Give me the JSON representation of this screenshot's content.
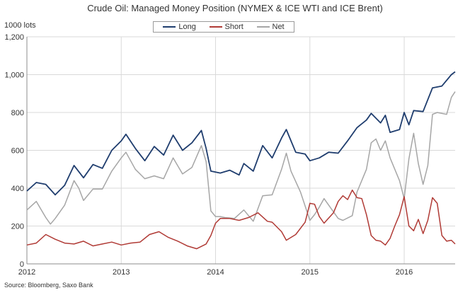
{
  "chart_data": {
    "type": "line",
    "title": "Crude Oil: Managed Money Position (NYMEX & ICE WTI and ICE Brent)",
    "ylabel": "1000 lots",
    "source": "Source: Bloomberg, Saxo Bank",
    "ylim": [
      0,
      1200
    ],
    "xlim": [
      2012,
      2016.54
    ],
    "yticks": [
      0,
      200,
      400,
      600,
      800,
      1000,
      1200
    ],
    "yticklabels": [
      "0",
      "200",
      "400",
      "600",
      "800",
      "1,000",
      "1,200"
    ],
    "xticks": [
      2012,
      2013,
      2014,
      2015,
      2016
    ],
    "xticklabels": [
      "2012",
      "2013",
      "2014",
      "2015",
      "2016"
    ],
    "grid": true,
    "legend_position": "top-center",
    "series": [
      {
        "name": "Long",
        "color": "#1f3d6e",
        "points": [
          [
            2012.0,
            385
          ],
          [
            2012.1,
            430
          ],
          [
            2012.2,
            420
          ],
          [
            2012.3,
            365
          ],
          [
            2012.4,
            415
          ],
          [
            2012.5,
            520
          ],
          [
            2012.6,
            455
          ],
          [
            2012.7,
            525
          ],
          [
            2012.8,
            505
          ],
          [
            2012.9,
            600
          ],
          [
            2013.0,
            650
          ],
          [
            2013.05,
            685
          ],
          [
            2013.15,
            610
          ],
          [
            2013.25,
            545
          ],
          [
            2013.35,
            620
          ],
          [
            2013.45,
            575
          ],
          [
            2013.55,
            680
          ],
          [
            2013.65,
            600
          ],
          [
            2013.75,
            640
          ],
          [
            2013.85,
            705
          ],
          [
            2013.9,
            610
          ],
          [
            2013.95,
            490
          ],
          [
            2014.05,
            480
          ],
          [
            2014.15,
            495
          ],
          [
            2014.25,
            470
          ],
          [
            2014.3,
            530
          ],
          [
            2014.4,
            490
          ],
          [
            2014.5,
            625
          ],
          [
            2014.6,
            560
          ],
          [
            2014.7,
            665
          ],
          [
            2014.75,
            710
          ],
          [
            2014.8,
            650
          ],
          [
            2014.85,
            590
          ],
          [
            2014.95,
            580
          ],
          [
            2015.0,
            545
          ],
          [
            2015.1,
            560
          ],
          [
            2015.2,
            590
          ],
          [
            2015.3,
            585
          ],
          [
            2015.4,
            650
          ],
          [
            2015.5,
            720
          ],
          [
            2015.6,
            760
          ],
          [
            2015.65,
            795
          ],
          [
            2015.75,
            745
          ],
          [
            2015.8,
            785
          ],
          [
            2015.85,
            695
          ],
          [
            2015.95,
            710
          ],
          [
            2016.0,
            800
          ],
          [
            2016.05,
            735
          ],
          [
            2016.1,
            810
          ],
          [
            2016.2,
            805
          ],
          [
            2016.3,
            930
          ],
          [
            2016.4,
            940
          ],
          [
            2016.5,
            1000
          ],
          [
            2016.54,
            1015
          ]
        ]
      },
      {
        "name": "Short",
        "color": "#b03a35",
        "points": [
          [
            2012.0,
            100
          ],
          [
            2012.1,
            110
          ],
          [
            2012.2,
            155
          ],
          [
            2012.3,
            130
          ],
          [
            2012.4,
            110
          ],
          [
            2012.5,
            105
          ],
          [
            2012.6,
            120
          ],
          [
            2012.7,
            95
          ],
          [
            2012.8,
            105
          ],
          [
            2012.9,
            115
          ],
          [
            2013.0,
            100
          ],
          [
            2013.1,
            110
          ],
          [
            2013.2,
            115
          ],
          [
            2013.3,
            155
          ],
          [
            2013.4,
            170
          ],
          [
            2013.5,
            140
          ],
          [
            2013.6,
            120
          ],
          [
            2013.7,
            95
          ],
          [
            2013.8,
            80
          ],
          [
            2013.9,
            105
          ],
          [
            2013.95,
            150
          ],
          [
            2014.0,
            215
          ],
          [
            2014.05,
            240
          ],
          [
            2014.15,
            240
          ],
          [
            2014.25,
            230
          ],
          [
            2014.35,
            245
          ],
          [
            2014.45,
            270
          ],
          [
            2014.55,
            225
          ],
          [
            2014.6,
            220
          ],
          [
            2014.7,
            170
          ],
          [
            2014.75,
            125
          ],
          [
            2014.85,
            155
          ],
          [
            2014.95,
            220
          ],
          [
            2015.0,
            320
          ],
          [
            2015.05,
            315
          ],
          [
            2015.1,
            250
          ],
          [
            2015.15,
            215
          ],
          [
            2015.25,
            270
          ],
          [
            2015.3,
            330
          ],
          [
            2015.35,
            360
          ],
          [
            2015.4,
            340
          ],
          [
            2015.45,
            390
          ],
          [
            2015.5,
            350
          ],
          [
            2015.55,
            345
          ],
          [
            2015.6,
            260
          ],
          [
            2015.65,
            150
          ],
          [
            2015.7,
            125
          ],
          [
            2015.75,
            120
          ],
          [
            2015.8,
            100
          ],
          [
            2015.85,
            135
          ],
          [
            2015.9,
            200
          ],
          [
            2015.95,
            260
          ],
          [
            2016.0,
            355
          ],
          [
            2016.05,
            200
          ],
          [
            2016.1,
            175
          ],
          [
            2016.15,
            235
          ],
          [
            2016.2,
            160
          ],
          [
            2016.25,
            230
          ],
          [
            2016.3,
            350
          ],
          [
            2016.35,
            320
          ],
          [
            2016.4,
            150
          ],
          [
            2016.45,
            120
          ],
          [
            2016.5,
            125
          ],
          [
            2016.54,
            105
          ]
        ]
      },
      {
        "name": "Net",
        "color": "#a6a6a6",
        "points": [
          [
            2012.0,
            285
          ],
          [
            2012.1,
            330
          ],
          [
            2012.2,
            245
          ],
          [
            2012.25,
            210
          ],
          [
            2012.3,
            240
          ],
          [
            2012.4,
            310
          ],
          [
            2012.5,
            440
          ],
          [
            2012.55,
            400
          ],
          [
            2012.6,
            335
          ],
          [
            2012.7,
            395
          ],
          [
            2012.8,
            395
          ],
          [
            2012.9,
            490
          ],
          [
            2013.0,
            560
          ],
          [
            2013.05,
            590
          ],
          [
            2013.15,
            500
          ],
          [
            2013.25,
            450
          ],
          [
            2013.35,
            465
          ],
          [
            2013.45,
            450
          ],
          [
            2013.55,
            560
          ],
          [
            2013.65,
            475
          ],
          [
            2013.75,
            510
          ],
          [
            2013.85,
            625
          ],
          [
            2013.9,
            540
          ],
          [
            2013.95,
            280
          ],
          [
            2014.0,
            250
          ],
          [
            2014.05,
            250
          ],
          [
            2014.1,
            245
          ],
          [
            2014.2,
            240
          ],
          [
            2014.3,
            285
          ],
          [
            2014.4,
            225
          ],
          [
            2014.5,
            360
          ],
          [
            2014.6,
            365
          ],
          [
            2014.7,
            500
          ],
          [
            2014.75,
            585
          ],
          [
            2014.8,
            490
          ],
          [
            2014.9,
            380
          ],
          [
            2015.0,
            230
          ],
          [
            2015.05,
            260
          ],
          [
            2015.1,
            300
          ],
          [
            2015.15,
            345
          ],
          [
            2015.25,
            275
          ],
          [
            2015.3,
            240
          ],
          [
            2015.35,
            230
          ],
          [
            2015.45,
            255
          ],
          [
            2015.5,
            380
          ],
          [
            2015.6,
            500
          ],
          [
            2015.65,
            640
          ],
          [
            2015.7,
            660
          ],
          [
            2015.75,
            600
          ],
          [
            2015.8,
            650
          ],
          [
            2015.85,
            560
          ],
          [
            2015.95,
            440
          ],
          [
            2016.0,
            345
          ],
          [
            2016.05,
            555
          ],
          [
            2016.1,
            690
          ],
          [
            2016.15,
            530
          ],
          [
            2016.2,
            420
          ],
          [
            2016.25,
            520
          ],
          [
            2016.3,
            790
          ],
          [
            2016.35,
            800
          ],
          [
            2016.45,
            790
          ],
          [
            2016.5,
            880
          ],
          [
            2016.54,
            910
          ]
        ]
      }
    ]
  }
}
